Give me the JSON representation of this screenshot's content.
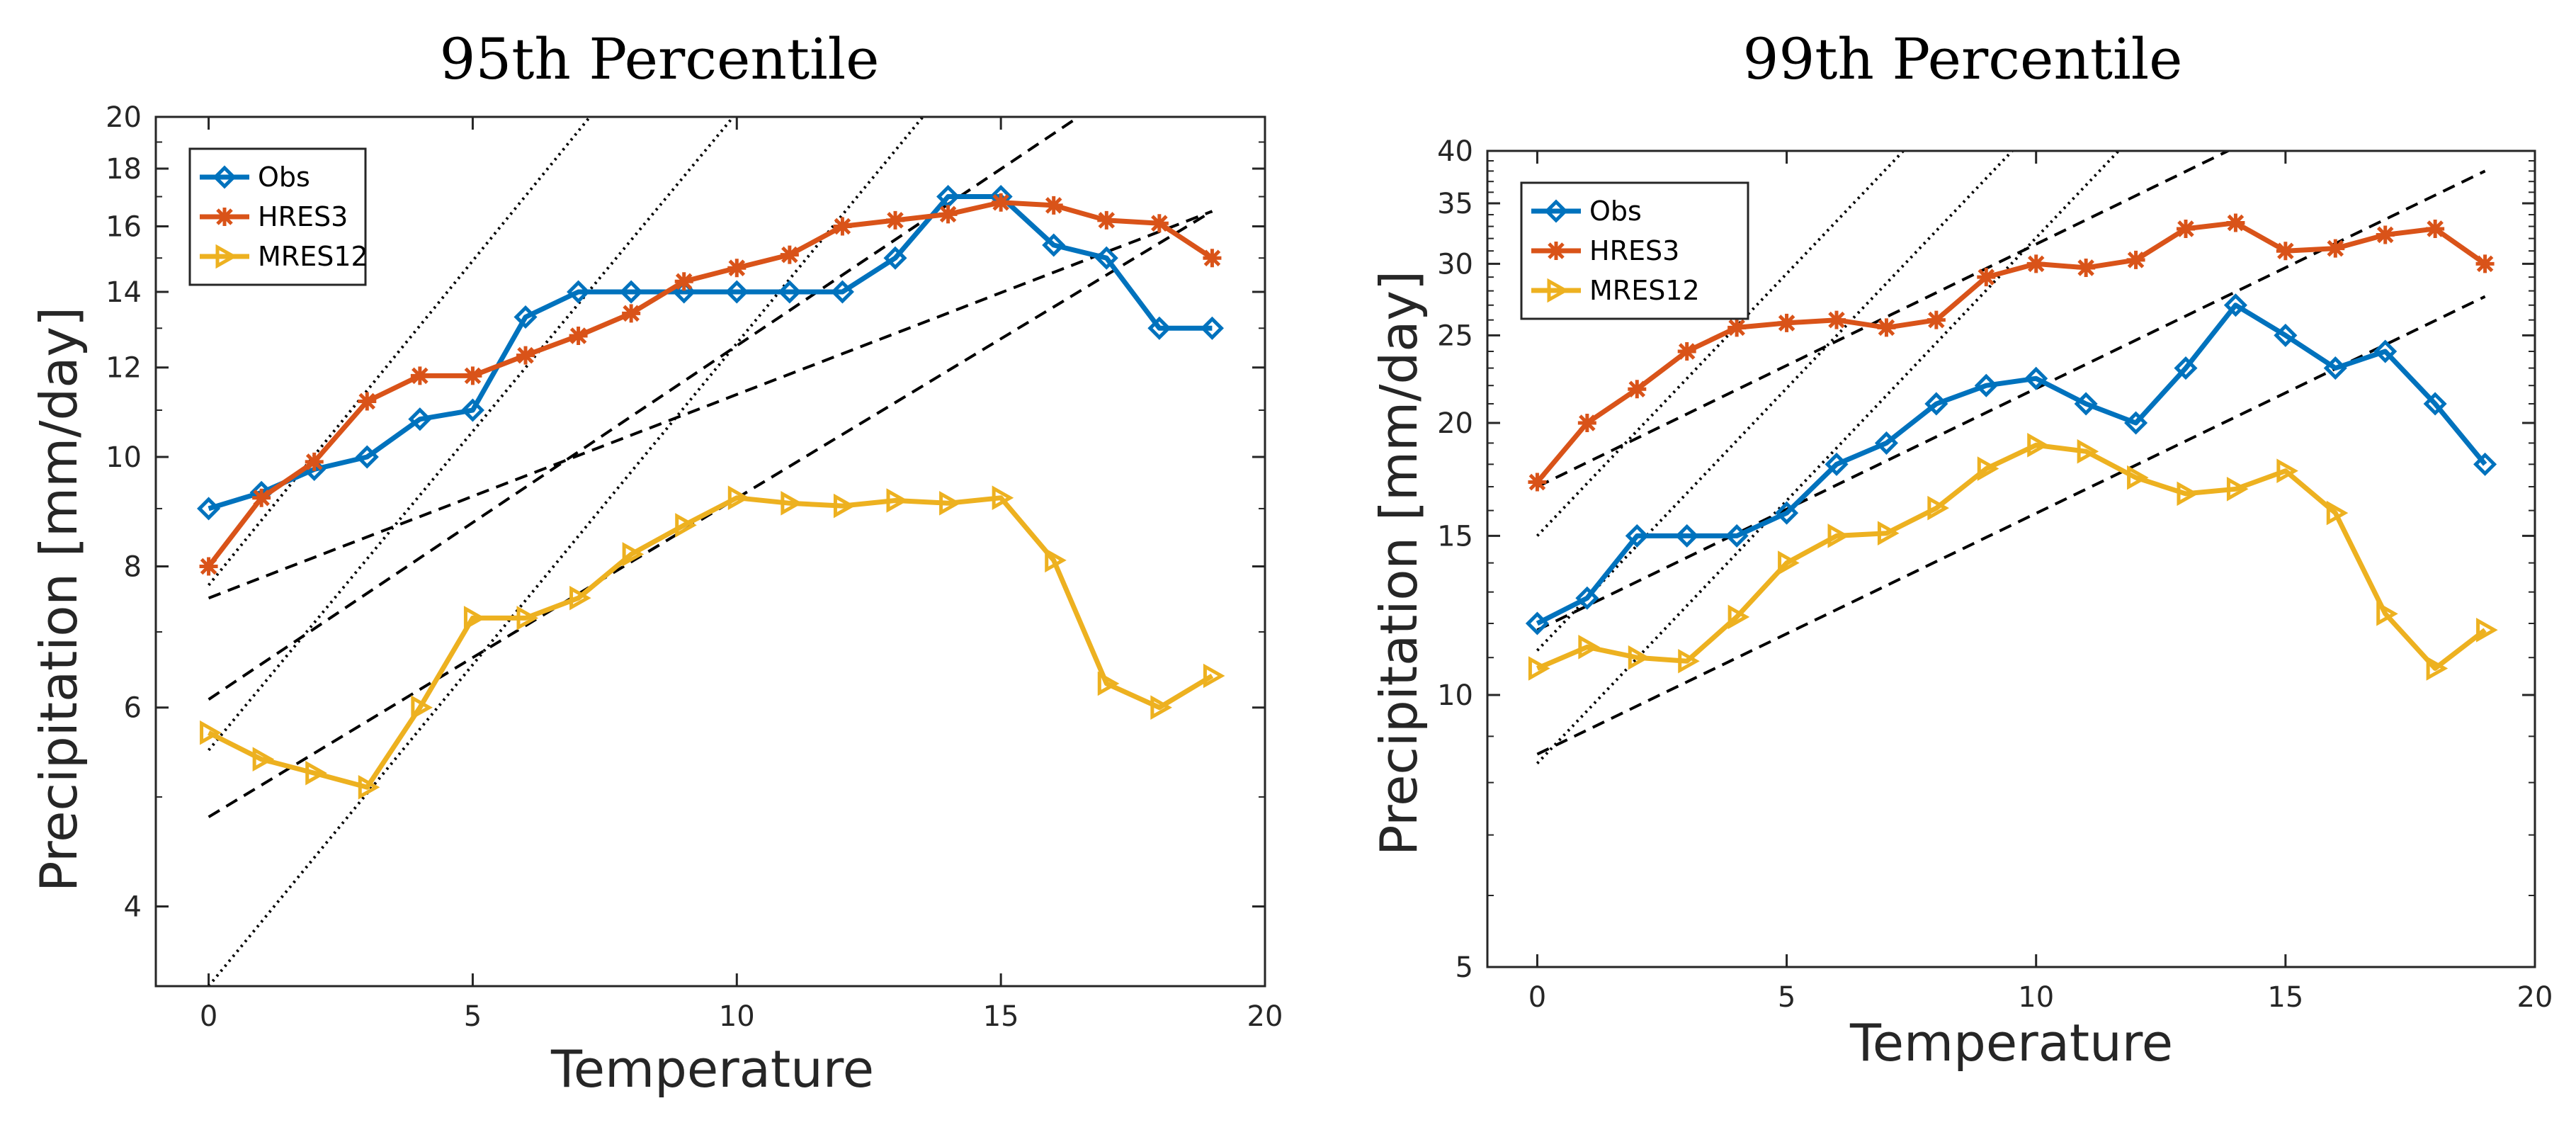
{
  "chart_data": [
    {
      "type": "line",
      "title": "95th Percentile",
      "xlabel": "Temperature",
      "ylabel": "Precipitation [mm/day]",
      "xlim": [
        -1,
        20
      ],
      "ylim": [
        3.4,
        20
      ],
      "yscale": "log",
      "xticks": [
        0,
        5,
        10,
        15,
        20
      ],
      "yticks": [
        4,
        6,
        8,
        10,
        12,
        14,
        16,
        18,
        20
      ],
      "legend": "top-left",
      "x": [
        0,
        1,
        2,
        3,
        4,
        5,
        6,
        7,
        8,
        9,
        10,
        11,
        12,
        13,
        14,
        15,
        16,
        17,
        18,
        19
      ],
      "series": [
        {
          "name": "Obs",
          "color": "#0072BD",
          "marker": "diamond",
          "values": [
            9.0,
            9.3,
            9.75,
            10.0,
            10.8,
            11.0,
            13.3,
            14.0,
            14.0,
            14.0,
            14.0,
            14.0,
            14.0,
            15.0,
            17.0,
            17.0,
            15.4,
            15.0,
            13.0,
            13.0
          ]
        },
        {
          "name": "HRES3",
          "color": "#D95319",
          "marker": "star",
          "values": [
            8.0,
            9.2,
            9.9,
            11.2,
            11.8,
            11.8,
            12.3,
            12.8,
            13.4,
            14.3,
            14.7,
            15.1,
            16.0,
            16.2,
            16.4,
            16.8,
            16.7,
            16.2,
            16.1,
            15.0
          ]
        },
        {
          "name": "MRES12",
          "color": "#EDB120",
          "marker": "triangle-right",
          "values": [
            5.7,
            5.4,
            5.25,
            5.1,
            6.0,
            7.2,
            7.2,
            7.5,
            8.2,
            8.7,
            9.2,
            9.1,
            9.05,
            9.15,
            9.1,
            9.2,
            8.1,
            6.3,
            6.0,
            6.4
          ]
        }
      ],
      "reference_lines": [
        {
          "style": "dashed",
          "x": [
            0,
            19
          ],
          "y": [
            7.5,
            16.5
          ]
        },
        {
          "style": "dashed",
          "x": [
            0,
            19
          ],
          "y": [
            6.1,
            24.0
          ]
        },
        {
          "style": "dashed",
          "x": [
            0,
            19
          ],
          "y": [
            4.8,
            16.5
          ]
        },
        {
          "style": "dotted",
          "x": [
            0,
            19
          ],
          "y": [
            7.7,
            95.0
          ]
        },
        {
          "style": "dotted",
          "x": [
            0,
            19
          ],
          "y": [
            5.5,
            65.0
          ]
        },
        {
          "style": "dotted",
          "x": [
            0,
            19
          ],
          "y": [
            3.4,
            41.0
          ]
        }
      ]
    },
    {
      "type": "line",
      "title": "99th Percentile",
      "xlabel": "Temperature",
      "ylabel": "Precipitation [mm/day]",
      "xlim": [
        -1,
        20
      ],
      "ylim": [
        5,
        40
      ],
      "yscale": "log",
      "xticks": [
        0,
        5,
        10,
        15,
        20
      ],
      "yticks": [
        5,
        10,
        15,
        20,
        25,
        30,
        35,
        40
      ],
      "legend": "top-left",
      "x": [
        0,
        1,
        2,
        3,
        4,
        5,
        6,
        7,
        8,
        9,
        10,
        11,
        12,
        13,
        14,
        15,
        16,
        17,
        18,
        19
      ],
      "series": [
        {
          "name": "Obs",
          "color": "#0072BD",
          "marker": "diamond",
          "values": [
            12.0,
            12.8,
            15.0,
            15.0,
            15.0,
            15.9,
            18.0,
            19.0,
            21.0,
            22.0,
            22.4,
            21.0,
            20.0,
            23.0,
            27.0,
            25.0,
            23.0,
            24.0,
            21.0,
            18.0
          ]
        },
        {
          "name": "HRES3",
          "color": "#D95319",
          "marker": "star",
          "values": [
            17.2,
            20.0,
            21.8,
            24.0,
            25.5,
            25.8,
            26.0,
            25.5,
            26.0,
            29.0,
            30.0,
            29.7,
            30.3,
            32.8,
            33.3,
            31.0,
            31.2,
            32.3,
            32.8,
            30.0
          ]
        },
        {
          "name": "MRES12",
          "color": "#EDB120",
          "marker": "triangle-right",
          "values": [
            10.7,
            11.3,
            11.0,
            10.9,
            12.2,
            14.0,
            15.0,
            15.1,
            16.1,
            17.8,
            18.9,
            18.6,
            17.4,
            16.7,
            16.9,
            17.7,
            15.9,
            12.3,
            10.7,
            11.8
          ]
        }
      ],
      "reference_lines": [
        {
          "style": "dashed",
          "x": [
            0,
            19
          ],
          "y": [
            17.0,
            55.0
          ]
        },
        {
          "style": "dashed",
          "x": [
            0,
            19
          ],
          "y": [
            11.8,
            38.0
          ]
        },
        {
          "style": "dashed",
          "x": [
            0,
            19
          ],
          "y": [
            8.6,
            27.6
          ]
        },
        {
          "style": "dotted",
          "x": [
            0,
            19
          ],
          "y": [
            15.0,
            190.0
          ]
        },
        {
          "style": "dotted",
          "x": [
            0,
            19
          ],
          "y": [
            11.2,
            142.0
          ]
        },
        {
          "style": "dotted",
          "x": [
            0,
            19
          ],
          "y": [
            8.4,
            107.0
          ]
        }
      ]
    }
  ]
}
